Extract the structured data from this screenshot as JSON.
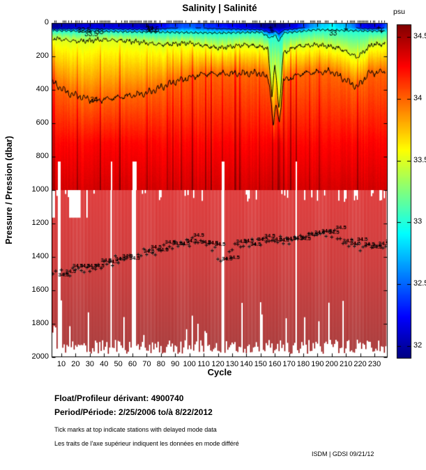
{
  "title": "Salinity | Salinité",
  "axes": {
    "x": {
      "label": "Cycle",
      "tick_values": [
        10,
        20,
        30,
        40,
        50,
        60,
        70,
        80,
        90,
        100,
        110,
        120,
        130,
        140,
        150,
        160,
        170,
        180,
        190,
        200,
        210,
        220,
        230
      ],
      "tick_labels": [
        "10",
        "20",
        "30",
        "40",
        "50",
        "60",
        "70",
        "80",
        "90",
        "100",
        "110",
        "120",
        "130",
        "140",
        "150",
        "160",
        "170",
        "180",
        "190",
        "200",
        "210",
        "220",
        "230"
      ],
      "range": [
        3,
        239
      ]
    },
    "y": {
      "label": "Pressure / Pression (dbar)",
      "tick_values": [
        0,
        200,
        400,
        600,
        800,
        1000,
        1200,
        1400,
        1600,
        1800,
        2000
      ],
      "tick_labels": [
        "0",
        "200",
        "400",
        "600",
        "800",
        "1000",
        "1200",
        "1400",
        "1600",
        "1800",
        "2000"
      ],
      "range": [
        0,
        2000
      ]
    }
  },
  "colorbar": {
    "label": "psu",
    "colormap": "jet",
    "tick_values": [
      34.5,
      34,
      33.5,
      33,
      32.5,
      32
    ],
    "tick_labels": [
      "34.5",
      "34",
      "33.5",
      "33",
      "32.5",
      "32"
    ],
    "range": [
      31.9,
      34.6
    ]
  },
  "footer": {
    "float_label": "Float/Profileur dérivant:",
    "float_id": "4900740",
    "period_label": "Period/Période:",
    "period_value": "2/25/2006  to/à  8/22/2012",
    "note_en": "Tick marks at top indicate stations with delayed mode data",
    "note_fr": "Les traits de l'axe supérieur indiquent les données en mode différé",
    "credit": "ISDM | GDSI  09/21/12"
  },
  "chart_data": {
    "type": "heatmap",
    "title": "Salinity | Salinité",
    "xlabel": "Cycle",
    "ylabel": "Pressure / Pression (dbar)",
    "x_range": [
      3,
      239
    ],
    "y_range": [
      0,
      2000
    ],
    "colorbar_label": "psu",
    "color_range": [
      31.9,
      34.6
    ],
    "continuous_field_max_depth_dbar": 1000,
    "surface_salinity_by_cycle": [
      [
        3,
        31.9
      ],
      [
        10,
        32.0
      ],
      [
        25,
        32.1
      ],
      [
        50,
        32.1
      ],
      [
        70,
        32.0
      ],
      [
        85,
        32.3
      ],
      [
        100,
        32.45
      ],
      [
        115,
        32.3
      ],
      [
        130,
        32.2
      ],
      [
        145,
        32.05
      ],
      [
        153,
        31.9
      ],
      [
        166,
        31.95
      ],
      [
        175,
        32.2
      ],
      [
        188,
        32.65
      ],
      [
        200,
        32.85
      ],
      [
        213,
        32.6
      ],
      [
        222,
        32.15
      ],
      [
        230,
        32.1
      ],
      [
        239,
        32.45
      ]
    ],
    "contour_depths_by_cycle": {
      "33": [
        [
          3,
          45
        ],
        [
          40,
          50
        ],
        [
          80,
          55
        ],
        [
          120,
          60
        ],
        [
          150,
          55
        ],
        [
          157,
          90
        ],
        [
          160,
          70
        ],
        [
          163,
          110
        ],
        [
          166,
          60
        ],
        [
          190,
          40
        ],
        [
          210,
          45
        ],
        [
          239,
          50
        ]
      ],
      "33.5": [
        [
          3,
          90
        ],
        [
          20,
          110
        ],
        [
          40,
          100
        ],
        [
          60,
          110
        ],
        [
          80,
          130
        ],
        [
          100,
          120
        ],
        [
          120,
          150
        ],
        [
          140,
          130
        ],
        [
          155,
          150
        ],
        [
          158,
          430
        ],
        [
          160,
          250
        ],
        [
          163,
          520
        ],
        [
          166,
          180
        ],
        [
          175,
          140
        ],
        [
          190,
          130
        ],
        [
          205,
          150
        ],
        [
          218,
          205
        ],
        [
          228,
          130
        ],
        [
          239,
          125
        ]
      ],
      "34": [
        [
          3,
          350
        ],
        [
          15,
          420
        ],
        [
          33,
          465
        ],
        [
          50,
          445
        ],
        [
          70,
          420
        ],
        [
          90,
          350
        ],
        [
          110,
          305
        ],
        [
          150,
          300
        ],
        [
          156,
          340
        ],
        [
          159,
          625
        ],
        [
          161,
          480
        ],
        [
          163,
          600
        ],
        [
          166,
          345
        ],
        [
          180,
          300
        ],
        [
          200,
          290
        ],
        [
          218,
          385
        ],
        [
          226,
          300
        ],
        [
          239,
          290
        ]
      ]
    },
    "iso_34_5_depth_by_cycle": [
      [
        3,
        1505
      ],
      [
        30,
        1470
      ],
      [
        60,
        1400
      ],
      [
        80,
        1350
      ],
      [
        100,
        1305
      ],
      [
        115,
        1320
      ],
      [
        123,
        1455
      ],
      [
        132,
        1330
      ],
      [
        150,
        1310
      ],
      [
        170,
        1300
      ],
      [
        185,
        1265
      ],
      [
        200,
        1260
      ],
      [
        210,
        1320
      ],
      [
        225,
        1340
      ],
      [
        239,
        1330
      ]
    ],
    "deep_bar_bottom_typical_dbar": [
      1900,
      1980
    ],
    "missing_cycles": [
      8,
      9,
      45,
      60,
      61,
      62,
      123,
      124,
      175
    ],
    "late_start_cycles": [
      2,
      3,
      4,
      5,
      16,
      17,
      18,
      19,
      20,
      21,
      22,
      23,
      28
    ],
    "contour_labels": [
      {
        "text": "34",
        "cycle": 33,
        "p": 462
      },
      {
        "text": "32.5",
        "cycle": 26,
        "p": 42
      },
      {
        "text": "33.5",
        "cycle": 31,
        "p": 66
      },
      {
        "text": "33",
        "cycle": 37,
        "p": 50
      },
      {
        "text": "33.5",
        "cycle": 74,
        "p": 40
      },
      {
        "text": "33",
        "cycle": 201,
        "p": 60
      }
    ],
    "plus_marks": [
      [
        71,
        22
      ],
      [
        72,
        42
      ],
      [
        74,
        30
      ],
      [
        76,
        50
      ],
      [
        157,
        28
      ],
      [
        158,
        46
      ],
      [
        210,
        36
      ],
      [
        233,
        28
      ],
      [
        235,
        48
      ]
    ],
    "iso_label_text": "34.5",
    "deep_bar_color_top": "#d60000",
    "deep_bar_color_bottom": "#8c0000"
  }
}
